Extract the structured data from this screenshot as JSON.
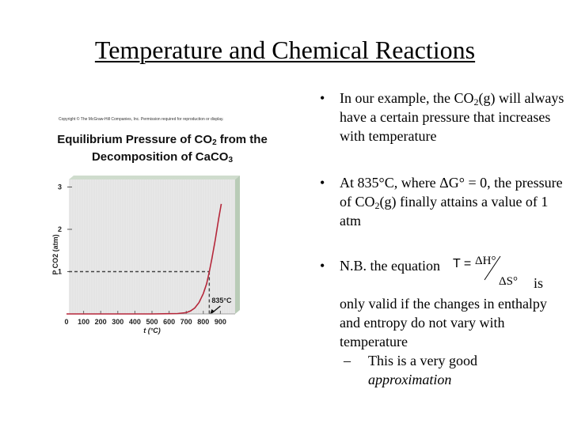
{
  "slide": {
    "title": "Temperature and Chemical Reactions"
  },
  "figure": {
    "copyright": "Copyright © The McGraw-Hill Companies, Inc. Permission required for reproduction or display.",
    "title_line1": "Equilibrium Pressure of CO",
    "title_line1_sub": "2",
    "title_line1_end": " from the",
    "title_line2": "Decomposition of CaCO",
    "title_line2_sub": "3"
  },
  "chart_data": {
    "type": "line",
    "title": "Equilibrium Pressure of CO2 from the Decomposition of CaCO3",
    "xlabel": "t (°C)",
    "ylabel": "P CO2 (atm)",
    "x_ticks": [
      0,
      100,
      200,
      300,
      400,
      500,
      600,
      700,
      800,
      900
    ],
    "y_ticks": [
      1,
      2,
      3
    ],
    "xlim": [
      0,
      950
    ],
    "ylim": [
      0,
      3.2
    ],
    "series": [
      {
        "name": "P_CO2",
        "color": "#b5273a",
        "x": [
          0,
          100,
          200,
          300,
          400,
          500,
          600,
          650,
          700,
          725,
          750,
          775,
          800,
          820,
          835,
          850,
          870,
          890,
          905
        ],
        "y": [
          0,
          0,
          0,
          0,
          0,
          0,
          0.005,
          0.01,
          0.03,
          0.07,
          0.14,
          0.27,
          0.48,
          0.72,
          1.0,
          1.3,
          1.75,
          2.25,
          2.6
        ]
      }
    ],
    "annotations": [
      {
        "text": "835°C",
        "x": 835,
        "y": 0,
        "arrow": true
      },
      {
        "type": "dashed-hline",
        "y": 1,
        "from_x": 0,
        "to_x": 835
      },
      {
        "type": "dashed-vline",
        "x": 835,
        "from_y": 0,
        "to_y": 1
      }
    ],
    "grid": false,
    "background": "#e8e8e8",
    "frame_side_color": "#b9cbb7"
  },
  "bullets": [
    {
      "pre": "In our example, the CO",
      "sub": "2",
      "post": "(g) will always have a certain pressure that increases with temperature"
    },
    {
      "pre": "At 835°C, where ΔG° = 0, the pressure of CO",
      "sub": "2",
      "post": "(g) finally attains a value of 1 atm"
    },
    {
      "pre": "N.B. the equation",
      "equation": {
        "lhs": "T =",
        "numerator": "ΔH°",
        "denominator": "ΔS°"
      },
      "after_eq": "is",
      "cont": "only valid if the changes in enthalpy and entropy do not vary with temperature",
      "sub_bullet": {
        "text": "This is a very good",
        "italic": "approximation"
      }
    }
  ],
  "glyphs": {
    "bullet": "•",
    "dash": "–"
  }
}
